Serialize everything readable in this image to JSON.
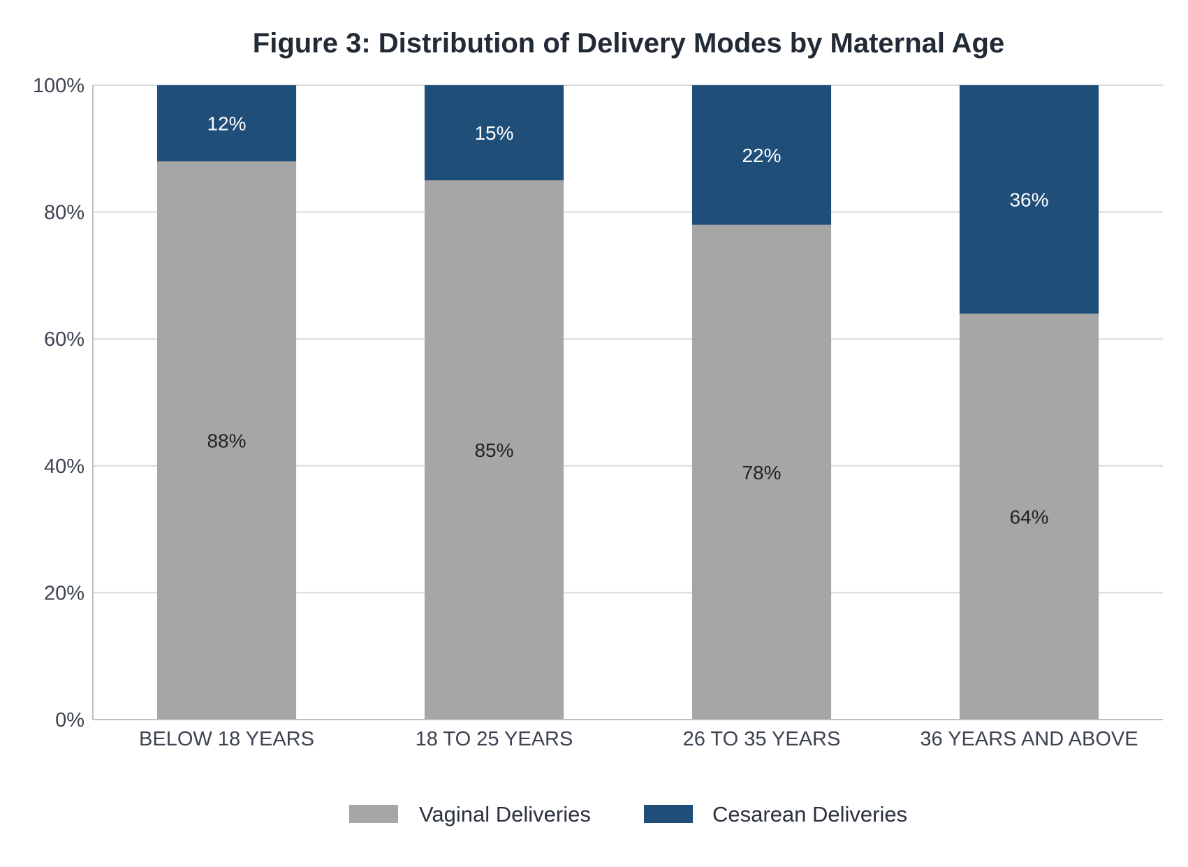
{
  "chart_data": {
    "type": "bar",
    "stacked": true,
    "title": "Figure 3: Distribution of Delivery Modes by Maternal Age",
    "xlabel": "",
    "ylabel": "",
    "ylim": [
      0,
      100
    ],
    "y_tick_values": [
      0,
      20,
      40,
      60,
      80,
      100
    ],
    "y_tick_labels": [
      "0%",
      "20%",
      "40%",
      "60%",
      "80%",
      "100%"
    ],
    "grid": true,
    "legend_position": "bottom",
    "categories": [
      "BELOW 18 YEARS",
      "18 TO 25 YEARS",
      "26 TO 35 YEARS",
      "36 YEARS AND ABOVE"
    ],
    "series": [
      {
        "name": "Vaginal Deliveries",
        "values": [
          88,
          85,
          78,
          64
        ],
        "labels": [
          "88%",
          "85%",
          "78%",
          "64%"
        ],
        "color": "#a6a6a6",
        "label_color": "#222222"
      },
      {
        "name": "Cesarean Deliveries",
        "values": [
          12,
          15,
          22,
          36
        ],
        "labels": [
          "12%",
          "15%",
          "22%",
          "36%"
        ],
        "color": "#1f4e79",
        "label_color": "#ffffff"
      }
    ]
  },
  "colors": {
    "grid": "#d9d9d9",
    "axis": "#bfbfbf"
  }
}
